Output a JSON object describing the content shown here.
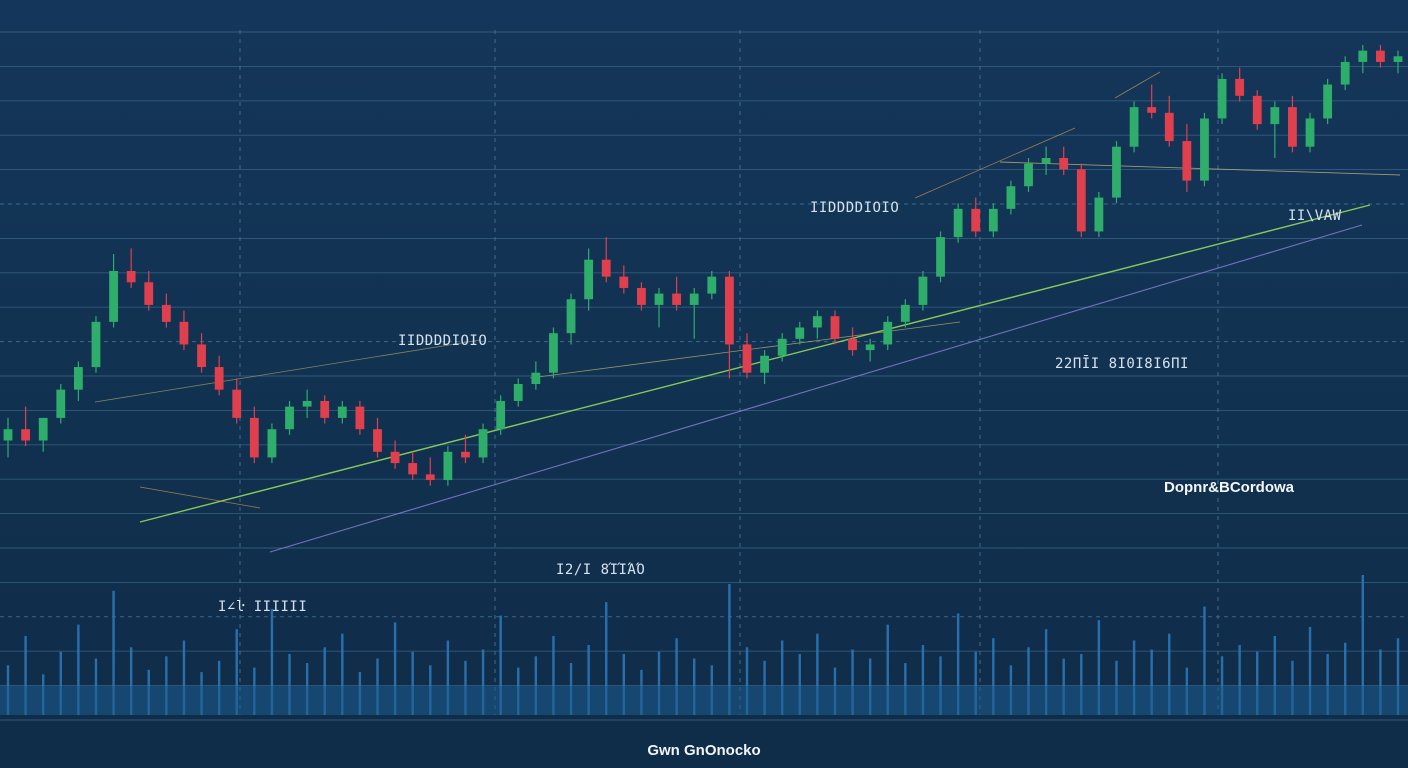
{
  "chart_data": {
    "type": "candlestick",
    "title": "",
    "xlabel": "",
    "ylabel": "",
    "grid": true,
    "trend": "rising",
    "ylim": [
      0,
      100
    ],
    "candles": [
      {
        "o": 30,
        "h": 34,
        "l": 27,
        "c": 32
      },
      {
        "o": 32,
        "h": 36,
        "l": 29,
        "c": 30
      },
      {
        "o": 30,
        "h": 33,
        "l": 28,
        "c": 34
      },
      {
        "o": 34,
        "h": 40,
        "l": 33,
        "c": 39
      },
      {
        "o": 39,
        "h": 44,
        "l": 37,
        "c": 43
      },
      {
        "o": 43,
        "h": 52,
        "l": 42,
        "c": 51
      },
      {
        "o": 51,
        "h": 63,
        "l": 50,
        "c": 60
      },
      {
        "o": 60,
        "h": 64,
        "l": 57,
        "c": 58
      },
      {
        "o": 58,
        "h": 60,
        "l": 53,
        "c": 54
      },
      {
        "o": 54,
        "h": 56,
        "l": 50,
        "c": 51
      },
      {
        "o": 51,
        "h": 53,
        "l": 46,
        "c": 47
      },
      {
        "o": 47,
        "h": 49,
        "l": 42,
        "c": 43
      },
      {
        "o": 43,
        "h": 45,
        "l": 38,
        "c": 39
      },
      {
        "o": 39,
        "h": 41,
        "l": 33,
        "c": 34
      },
      {
        "o": 34,
        "h": 36,
        "l": 26,
        "c": 27
      },
      {
        "o": 27,
        "h": 33,
        "l": 26,
        "c": 32
      },
      {
        "o": 32,
        "h": 37,
        "l": 31,
        "c": 36
      },
      {
        "o": 36,
        "h": 39,
        "l": 34,
        "c": 37
      },
      {
        "o": 37,
        "h": 38,
        "l": 33,
        "c": 34
      },
      {
        "o": 34,
        "h": 37,
        "l": 33,
        "c": 36
      },
      {
        "o": 36,
        "h": 37,
        "l": 31,
        "c": 32
      },
      {
        "o": 32,
        "h": 34,
        "l": 27,
        "c": 28
      },
      {
        "o": 28,
        "h": 30,
        "l": 25,
        "c": 26
      },
      {
        "o": 26,
        "h": 28,
        "l": 23,
        "c": 24
      },
      {
        "o": 24,
        "h": 27,
        "l": 22,
        "c": 23
      },
      {
        "o": 23,
        "h": 29,
        "l": 22,
        "c": 28
      },
      {
        "o": 28,
        "h": 31,
        "l": 26,
        "c": 27
      },
      {
        "o": 27,
        "h": 33,
        "l": 26,
        "c": 32
      },
      {
        "o": 32,
        "h": 38,
        "l": 31,
        "c": 37
      },
      {
        "o": 37,
        "h": 41,
        "l": 36,
        "c": 40
      },
      {
        "o": 40,
        "h": 44,
        "l": 39,
        "c": 42
      },
      {
        "o": 42,
        "h": 50,
        "l": 41,
        "c": 49
      },
      {
        "o": 49,
        "h": 56,
        "l": 47,
        "c": 55
      },
      {
        "o": 55,
        "h": 64,
        "l": 53,
        "c": 62
      },
      {
        "o": 62,
        "h": 66,
        "l": 58,
        "c": 59
      },
      {
        "o": 59,
        "h": 61,
        "l": 56,
        "c": 57
      },
      {
        "o": 57,
        "h": 58,
        "l": 53,
        "c": 54
      },
      {
        "o": 54,
        "h": 57,
        "l": 50,
        "c": 56
      },
      {
        "o": 56,
        "h": 59,
        "l": 53,
        "c": 54
      },
      {
        "o": 54,
        "h": 57,
        "l": 48,
        "c": 56
      },
      {
        "o": 56,
        "h": 60,
        "l": 55,
        "c": 59
      },
      {
        "o": 59,
        "h": 60,
        "l": 41,
        "c": 47
      },
      {
        "o": 47,
        "h": 49,
        "l": 41,
        "c": 42
      },
      {
        "o": 42,
        "h": 46,
        "l": 40,
        "c": 45
      },
      {
        "o": 45,
        "h": 49,
        "l": 44,
        "c": 48
      },
      {
        "o": 48,
        "h": 51,
        "l": 47,
        "c": 50
      },
      {
        "o": 50,
        "h": 53,
        "l": 48,
        "c": 52
      },
      {
        "o": 52,
        "h": 53,
        "l": 47,
        "c": 48
      },
      {
        "o": 48,
        "h": 50,
        "l": 45,
        "c": 46
      },
      {
        "o": 46,
        "h": 48,
        "l": 44,
        "c": 47
      },
      {
        "o": 47,
        "h": 52,
        "l": 46,
        "c": 51
      },
      {
        "o": 51,
        "h": 55,
        "l": 50,
        "c": 54
      },
      {
        "o": 54,
        "h": 60,
        "l": 53,
        "c": 59
      },
      {
        "o": 59,
        "h": 67,
        "l": 58,
        "c": 66
      },
      {
        "o": 66,
        "h": 72,
        "l": 65,
        "c": 71
      },
      {
        "o": 71,
        "h": 73,
        "l": 66,
        "c": 67
      },
      {
        "o": 67,
        "h": 72,
        "l": 66,
        "c": 71
      },
      {
        "o": 71,
        "h": 76,
        "l": 70,
        "c": 75
      },
      {
        "o": 75,
        "h": 80,
        "l": 74,
        "c": 79
      },
      {
        "o": 79,
        "h": 82,
        "l": 77,
        "c": 80
      },
      {
        "o": 80,
        "h": 82,
        "l": 77,
        "c": 78
      },
      {
        "o": 78,
        "h": 79,
        "l": 66,
        "c": 67
      },
      {
        "o": 67,
        "h": 74,
        "l": 66,
        "c": 73
      },
      {
        "o": 73,
        "h": 83,
        "l": 72,
        "c": 82
      },
      {
        "o": 82,
        "h": 90,
        "l": 81,
        "c": 89
      },
      {
        "o": 89,
        "h": 93,
        "l": 87,
        "c": 88
      },
      {
        "o": 88,
        "h": 91,
        "l": 82,
        "c": 83
      },
      {
        "o": 83,
        "h": 86,
        "l": 74,
        "c": 76
      },
      {
        "o": 76,
        "h": 88,
        "l": 75,
        "c": 87
      },
      {
        "o": 87,
        "h": 95,
        "l": 86,
        "c": 94
      },
      {
        "o": 94,
        "h": 96,
        "l": 90,
        "c": 91
      },
      {
        "o": 91,
        "h": 92,
        "l": 85,
        "c": 86
      },
      {
        "o": 86,
        "h": 90,
        "l": 80,
        "c": 89
      },
      {
        "o": 89,
        "h": 91,
        "l": 81,
        "c": 82
      },
      {
        "o": 82,
        "h": 88,
        "l": 81,
        "c": 87
      },
      {
        "o": 87,
        "h": 94,
        "l": 86,
        "c": 93
      },
      {
        "o": 93,
        "h": 98,
        "l": 92,
        "c": 97
      },
      {
        "o": 97,
        "h": 100,
        "l": 95,
        "c": 99
      },
      {
        "o": 99,
        "h": 100,
        "l": 96,
        "c": 97
      },
      {
        "o": 97,
        "h": 99,
        "l": 95,
        "c": 98
      }
    ],
    "volume": [
      22,
      35,
      18,
      28,
      40,
      25,
      55,
      30,
      20,
      26,
      33,
      19,
      24,
      38,
      21,
      47,
      27,
      23,
      30,
      36,
      19,
      25,
      41,
      28,
      22,
      33,
      24,
      29,
      44,
      21,
      26,
      35,
      23,
      31,
      50,
      27,
      20,
      28,
      34,
      25,
      22,
      58,
      30,
      24,
      33,
      27,
      36,
      21,
      29,
      25,
      40,
      23,
      31,
      26,
      45,
      28,
      34,
      22,
      30,
      38,
      25,
      27,
      42,
      24,
      33,
      29,
      36,
      21,
      48,
      26,
      31,
      28,
      35,
      24,
      39,
      27,
      32,
      62,
      29,
      34
    ],
    "annotations": [
      {
        "id": "a1",
        "text": "I∠ŀ IIIIII"
      },
      {
        "id": "a2",
        "text": "IIDDDDIOIO"
      },
      {
        "id": "a3",
        "text": "IIDDDDIOIO"
      },
      {
        "id": "a4",
        "text": "I2/I 8ΊΊΆΌ"
      },
      {
        "id": "a5",
        "text": "22ΠĪI 8I0I8I6ΠI"
      },
      {
        "id": "a6",
        "text": "II\\VAW"
      },
      {
        "id": "a7",
        "text": "Dopnr&BCordowa"
      }
    ],
    "footer_label": "Gwn GnOnocko"
  }
}
